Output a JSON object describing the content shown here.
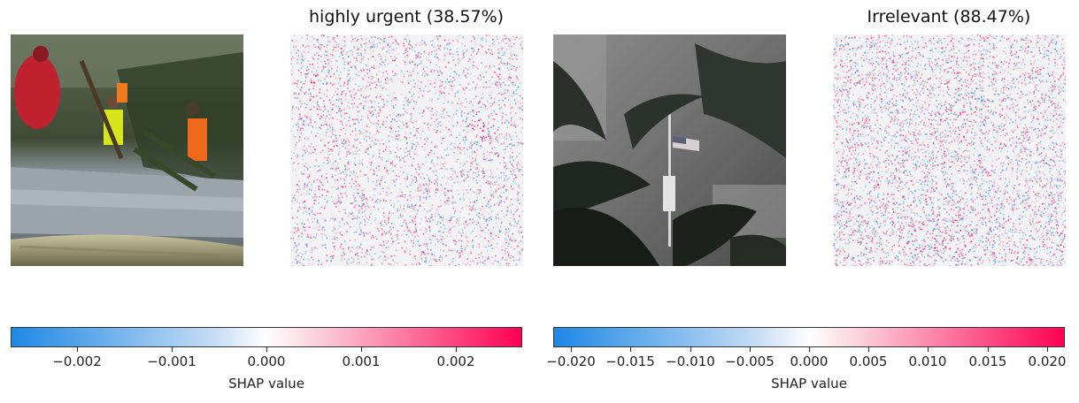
{
  "chart_data": [
    {
      "type": "heatmap",
      "title": "highly urgent (38.57%)",
      "colorbar": {
        "label": "SHAP value",
        "ticks": [
          "−0.002",
          "−0.001",
          "0.000",
          "0.001",
          "0.002"
        ],
        "tick_values": [
          -0.002,
          -0.001,
          0,
          0.001,
          0.002
        ],
        "range": [
          -0.0027,
          0.0027
        ],
        "colors": [
          "#1e88e5",
          "#ffffff",
          "#ff0052"
        ]
      },
      "image_description": "flooded street with storm debris and rescue workers in high-visibility vests"
    },
    {
      "type": "heatmap",
      "title": "Irrelevant (88.47%)",
      "colorbar": {
        "label": "SHAP value",
        "ticks": [
          "−0.020",
          "−0.015",
          "−0.010",
          "−0.005",
          "0.000",
          "0.005",
          "0.010",
          "0.015",
          "0.020"
        ],
        "tick_values": [
          -0.02,
          -0.015,
          -0.01,
          -0.005,
          0,
          0.005,
          0.01,
          0.015,
          0.02
        ],
        "range": [
          -0.0215,
          0.0215
        ],
        "colors": [
          "#1e88e5",
          "#ffffff",
          "#ff0052"
        ]
      },
      "image_description": "palm trees bending in hurricane winds with a flag on a pole"
    }
  ]
}
